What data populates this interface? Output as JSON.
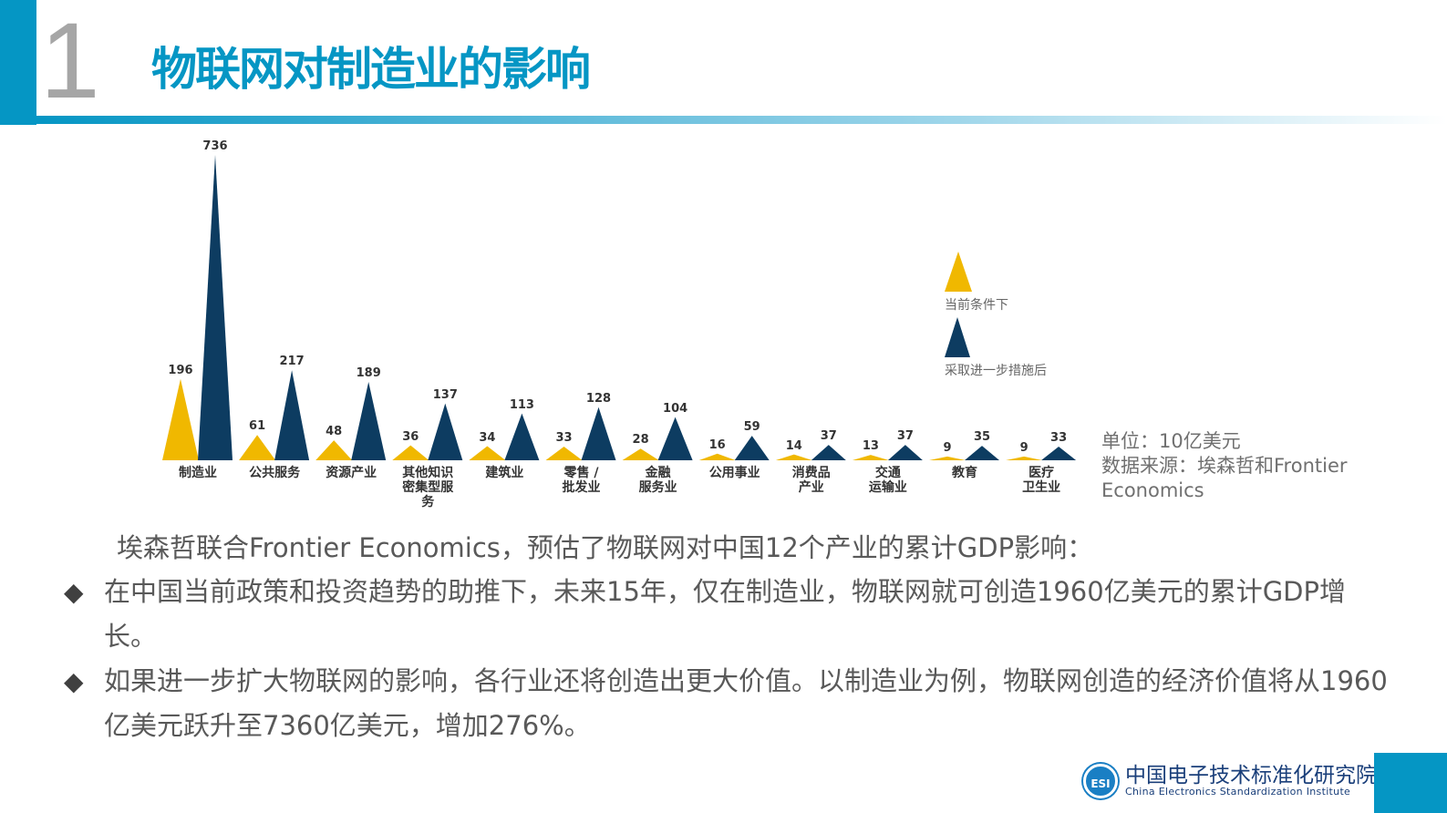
{
  "header": {
    "section_number": "1",
    "title": "物联网对制造业的影响"
  },
  "chart_data": {
    "type": "bar",
    "style": "triangle",
    "title": "",
    "xlabel": "",
    "ylabel": "",
    "unit": "10亿美元",
    "categories": [
      "制造业",
      "公共服务",
      "资源产业",
      "其他知识\n密集型服\n务",
      "建筑业",
      "零售 /\n批发业",
      "金融\n服务业",
      "公用事业",
      "消费品\n产业",
      "交通\n运输业",
      "教育",
      "医疗\n卫生业"
    ],
    "series": [
      {
        "name": "当前条件下",
        "color": "#f0b800",
        "values": [
          196,
          61,
          48,
          36,
          34,
          33,
          28,
          16,
          14,
          13,
          9,
          9
        ]
      },
      {
        "name": "采取进一步措施后",
        "color": "#0d3c61",
        "values": [
          736,
          217,
          189,
          137,
          113,
          128,
          104,
          59,
          37,
          37,
          35,
          33
        ]
      }
    ],
    "ylim": [
      0,
      736
    ],
    "grid": false,
    "legend_position": "right"
  },
  "legend": {
    "items": [
      {
        "label": "当前条件下",
        "color": "#f0b800"
      },
      {
        "label": "采取进一步措施后",
        "color": "#0d3c61"
      }
    ]
  },
  "notes": {
    "unit": "单位：10亿美元",
    "source": "数据来源：埃森哲和Frontier Economics"
  },
  "body": {
    "intro": "埃森哲联合Frontier Economics，预估了物联网对中国12个产业的累计GDP影响：",
    "bullets": [
      "在中国当前政策和投资趋势的助推下，未来15年，仅在制造业，物联网就可创造1960亿美元的累计GDP增长。",
      "如果进一步扩大物联网的影响，各行业还将创造出更大价值。以制造业为例，物联网创造的经济价值将从1960亿美元跃升至7360亿美元，增加276%。"
    ],
    "bullet_glyph": "◆"
  },
  "footer": {
    "logo_text": "ESI",
    "org_cn": "中国电子技术标准化研究院",
    "org_en": "China Electronics Standardization Institute"
  }
}
